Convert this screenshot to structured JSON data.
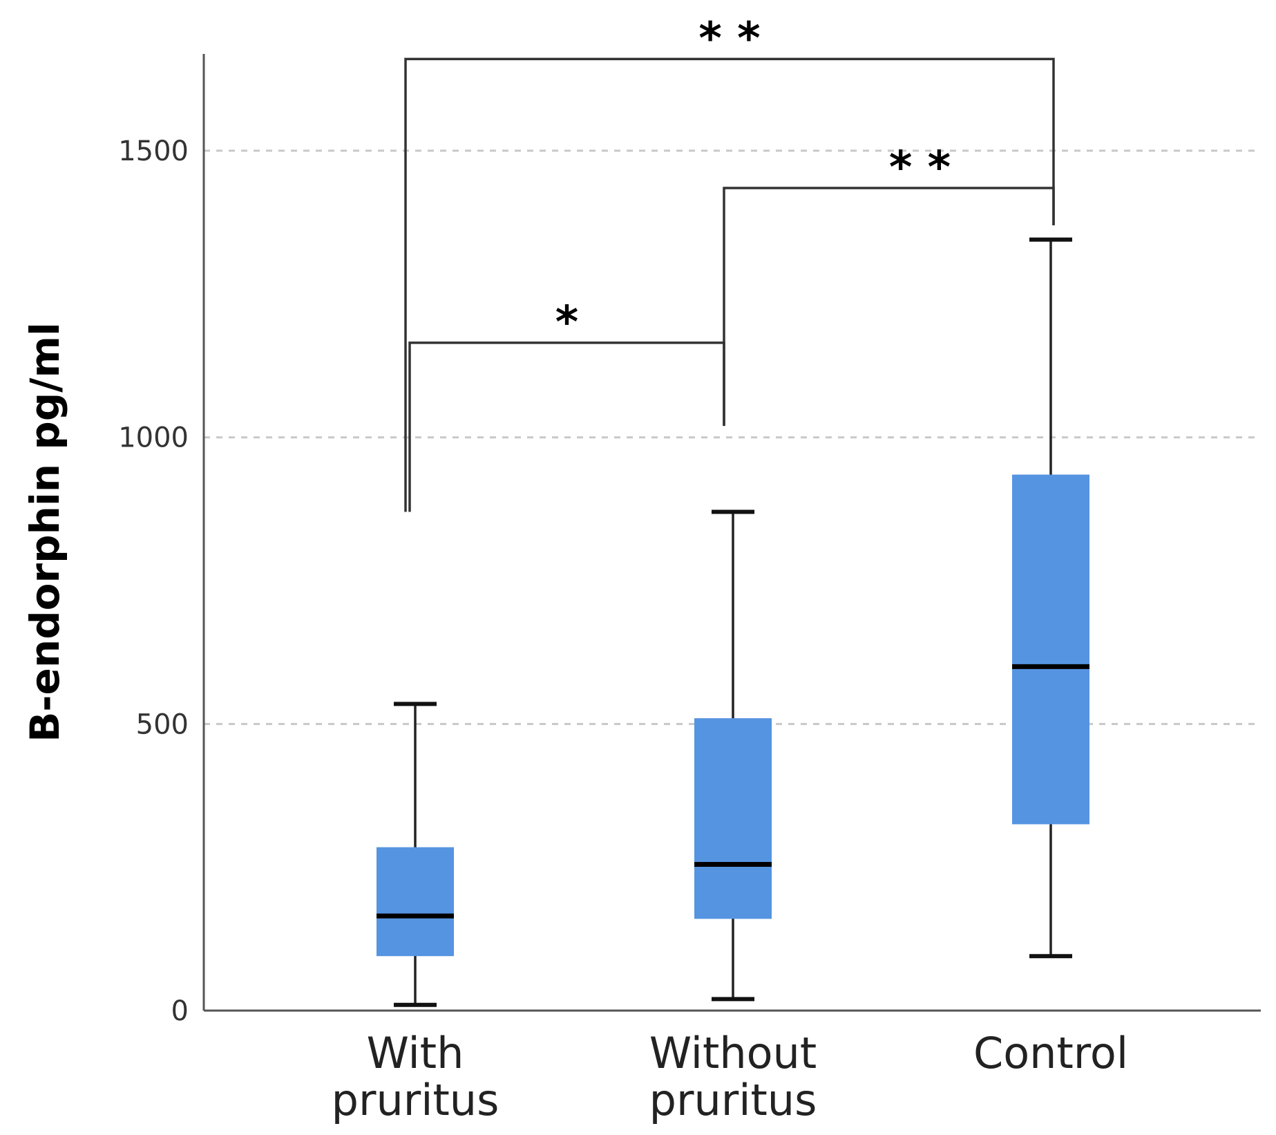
{
  "chart_data": {
    "type": "boxplot",
    "title": "",
    "xlabel": "",
    "ylabel": "B-endorphin pg/ml",
    "ylim": [
      0,
      1650
    ],
    "yticks": [
      0,
      500,
      1000,
      1500
    ],
    "grid": "horizontal-dashed",
    "categories": [
      {
        "lines": [
          "With",
          "pruritus"
        ]
      },
      {
        "lines": [
          "Without",
          "pruritus"
        ]
      },
      {
        "lines": [
          "Control"
        ]
      }
    ],
    "box_color": "#5594e1",
    "boxes": [
      {
        "whisker_low": 10,
        "q1": 95,
        "median": 165,
        "q3": 285,
        "whisker_high": 535
      },
      {
        "whisker_low": 20,
        "q1": 160,
        "median": 255,
        "q3": 510,
        "whisker_high": 870
      },
      {
        "whisker_low": 95,
        "q1": 325,
        "median": 600,
        "q3": 935,
        "whisker_high": 1345
      }
    ],
    "significance": [
      {
        "from": 0,
        "to": 1,
        "level": 1165,
        "left_drop": 870,
        "right_drop": 1020,
        "label": "*"
      },
      {
        "from": 1,
        "to": 2,
        "level": 1435,
        "left_drop": 1020,
        "right_drop": 1370,
        "label": "* *"
      },
      {
        "from": 0,
        "to": 2,
        "level": 1660,
        "left_drop": 870,
        "right_drop": 1370,
        "label": "* *"
      }
    ]
  }
}
